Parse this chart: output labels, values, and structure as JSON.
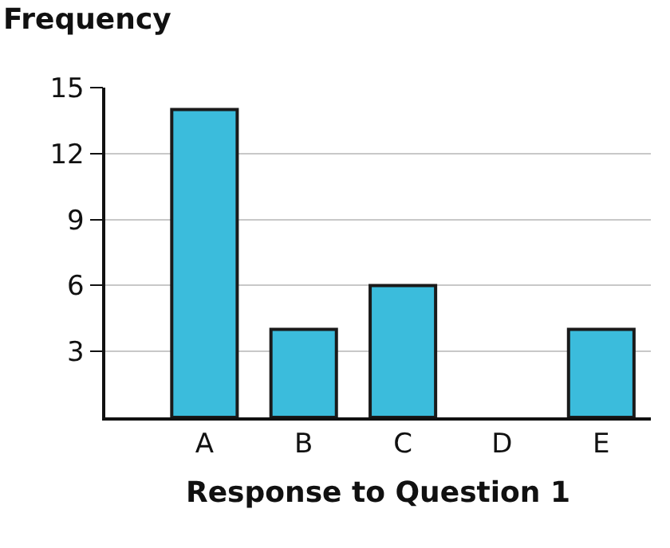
{
  "chart_data": {
    "type": "bar",
    "ylabel": "Frequency",
    "xlabel": "Response to Question 1",
    "categories": [
      "A",
      "B",
      "C",
      "D",
      "E"
    ],
    "values": [
      14,
      4,
      6,
      0,
      4
    ],
    "color": "#3bbcdc",
    "ylim": [
      0,
      15
    ],
    "yticks": [
      3,
      6,
      9,
      12,
      15
    ],
    "grid": "y"
  }
}
